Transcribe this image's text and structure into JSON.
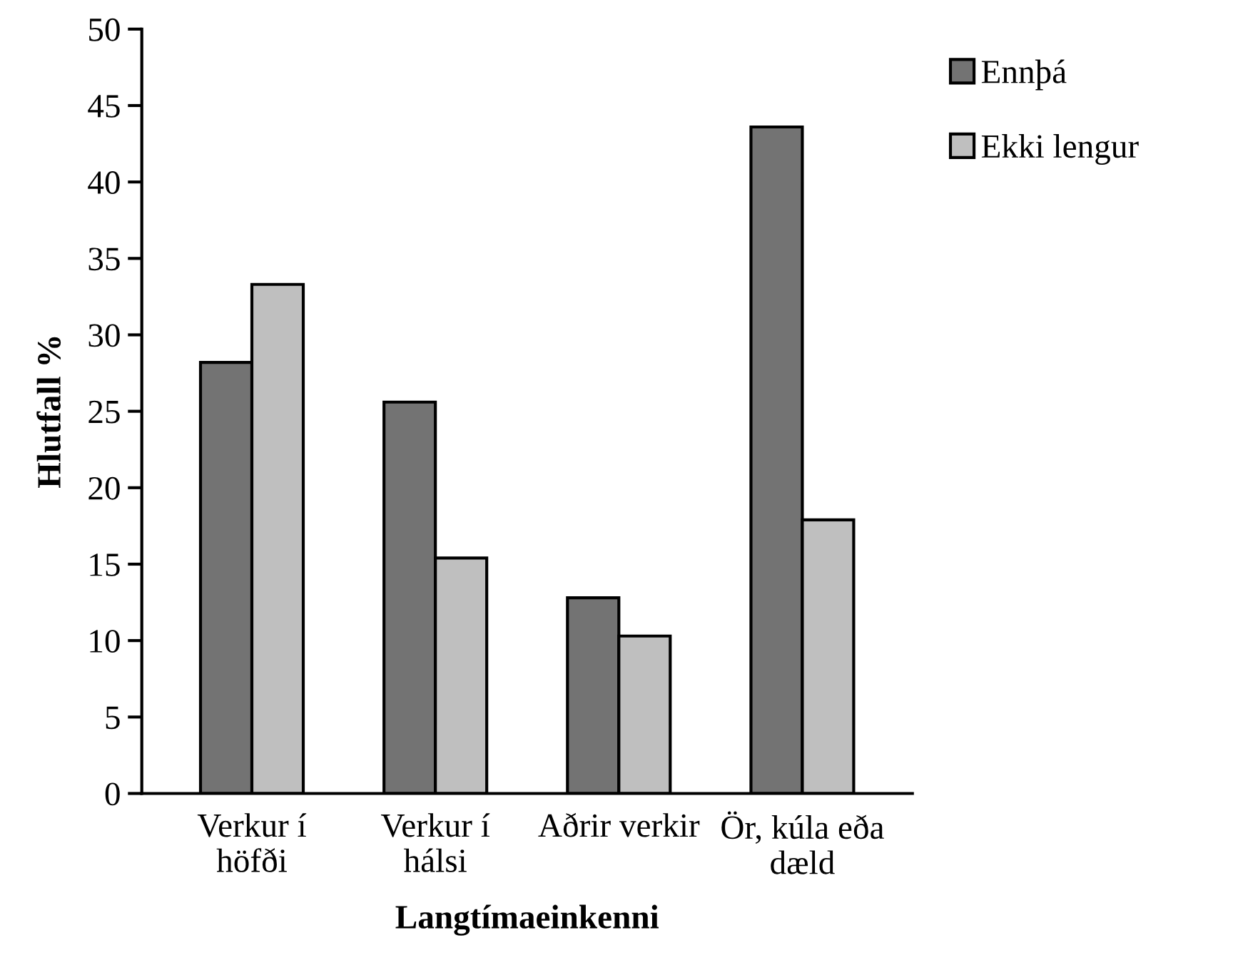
{
  "chart_data": {
    "type": "bar",
    "xlabel": "Langtímaeinkenni",
    "ylabel": "Hlutfall %",
    "categories": [
      "Verkur í\nhöfði",
      "Verkur í\nhálsi",
      "Aðrir verkir",
      "Ör, kúla eða\ndæld"
    ],
    "series": [
      {
        "name": "Ennþá",
        "color": "#737373",
        "values": [
          28.2,
          25.6,
          12.8,
          43.6
        ]
      },
      {
        "name": "Ekki lengur",
        "color": "#bfbfbf",
        "values": [
          33.3,
          15.4,
          10.3,
          17.9
        ]
      }
    ],
    "ylim": [
      0,
      50
    ],
    "yticks": [
      0,
      5,
      10,
      15,
      20,
      25,
      30,
      35,
      40,
      45,
      50
    ],
    "grid": false,
    "legend": "top right"
  }
}
